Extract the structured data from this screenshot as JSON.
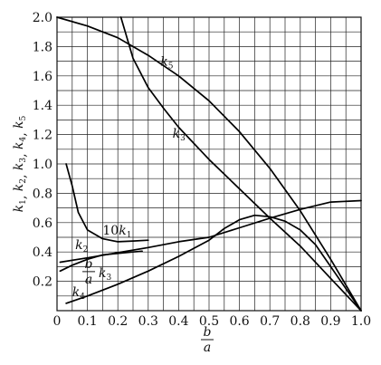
{
  "chart_data": {
    "type": "line",
    "xlim": [
      0,
      1.0
    ],
    "ylim": [
      0,
      2.0
    ],
    "grid": true,
    "x_minor_step": 0.05,
    "y_minor_step": 0.1,
    "x_tick_labels": [
      "0",
      "0.1",
      "0.2",
      "0.3",
      "0.4",
      "0.5",
      "0.6",
      "0.7",
      "0.8",
      "0.9",
      "1.0"
    ],
    "y_tick_labels": [
      "0.2",
      "0.4",
      "0.6",
      "0.8",
      "1.0",
      "1.2",
      "1.4",
      "1.6",
      "1.8",
      "2.0"
    ],
    "x_tick_values": [
      0,
      0.1,
      0.2,
      0.3,
      0.4,
      0.5,
      0.6,
      0.7,
      0.8,
      0.9,
      1.0
    ],
    "y_tick_values": [
      0.2,
      0.4,
      0.6,
      0.8,
      1.0,
      1.2,
      1.4,
      1.6,
      1.8,
      2.0
    ],
    "xlabel_num": "b",
    "xlabel_den": "a",
    "ylabel": "k1, k2, k3, k4, k5",
    "series": [
      {
        "name": "k5",
        "label_pos": [
          0.34,
          1.67
        ],
        "points": [
          [
            0,
            2.0
          ],
          [
            0.1,
            1.94
          ],
          [
            0.2,
            1.86
          ],
          [
            0.3,
            1.74
          ],
          [
            0.4,
            1.6
          ],
          [
            0.5,
            1.43
          ],
          [
            0.6,
            1.22
          ],
          [
            0.7,
            0.97
          ],
          [
            0.8,
            0.68
          ],
          [
            0.9,
            0.35
          ],
          [
            1.0,
            0.0
          ]
        ]
      },
      {
        "name": "k3",
        "label_pos": [
          0.38,
          1.18
        ],
        "points": [
          [
            0.21,
            2.0
          ],
          [
            0.25,
            1.72
          ],
          [
            0.3,
            1.52
          ],
          [
            0.35,
            1.38
          ],
          [
            0.4,
            1.25
          ],
          [
            0.5,
            1.03
          ],
          [
            0.6,
            0.83
          ],
          [
            0.7,
            0.63
          ],
          [
            0.8,
            0.44
          ],
          [
            0.9,
            0.22
          ],
          [
            1.0,
            0.0
          ]
        ]
      },
      {
        "name": "10k1",
        "label_pos": [
          0.15,
          0.52
        ],
        "points": [
          [
            0.03,
            1.0
          ],
          [
            0.05,
            0.85
          ],
          [
            0.07,
            0.67
          ],
          [
            0.1,
            0.55
          ],
          [
            0.15,
            0.49
          ],
          [
            0.2,
            0.47
          ],
          [
            0.25,
            0.475
          ],
          [
            0.3,
            0.48
          ]
        ]
      },
      {
        "name": "k2",
        "label_pos": [
          0.06,
          0.42
        ],
        "points": [
          [
            0.01,
            0.33
          ],
          [
            0.1,
            0.36
          ],
          [
            0.2,
            0.395
          ],
          [
            0.3,
            0.43
          ],
          [
            0.4,
            0.47
          ],
          [
            0.5,
            0.5
          ],
          [
            0.6,
            0.565
          ],
          [
            0.7,
            0.63
          ],
          [
            0.8,
            0.69
          ],
          [
            0.9,
            0.74
          ],
          [
            1.0,
            0.75
          ]
        ]
      },
      {
        "name": "b/a k3",
        "label_pos": [
          0.14,
          0.26
        ],
        "points": [
          [
            0.01,
            0.27
          ],
          [
            0.05,
            0.31
          ],
          [
            0.1,
            0.35
          ],
          [
            0.15,
            0.38
          ],
          [
            0.2,
            0.39
          ],
          [
            0.25,
            0.4
          ],
          [
            0.28,
            0.405
          ]
        ]
      },
      {
        "name": "k4",
        "label_pos": [
          0.05,
          0.1
        ],
        "points": [
          [
            0.03,
            0.05
          ],
          [
            0.1,
            0.1
          ],
          [
            0.2,
            0.18
          ],
          [
            0.3,
            0.27
          ],
          [
            0.4,
            0.37
          ],
          [
            0.5,
            0.48
          ],
          [
            0.55,
            0.56
          ],
          [
            0.6,
            0.62
          ],
          [
            0.65,
            0.65
          ],
          [
            0.7,
            0.64
          ],
          [
            0.75,
            0.61
          ],
          [
            0.8,
            0.55
          ],
          [
            0.85,
            0.45
          ],
          [
            0.9,
            0.3
          ],
          [
            0.95,
            0.15
          ],
          [
            1.0,
            0.0
          ]
        ]
      }
    ]
  }
}
